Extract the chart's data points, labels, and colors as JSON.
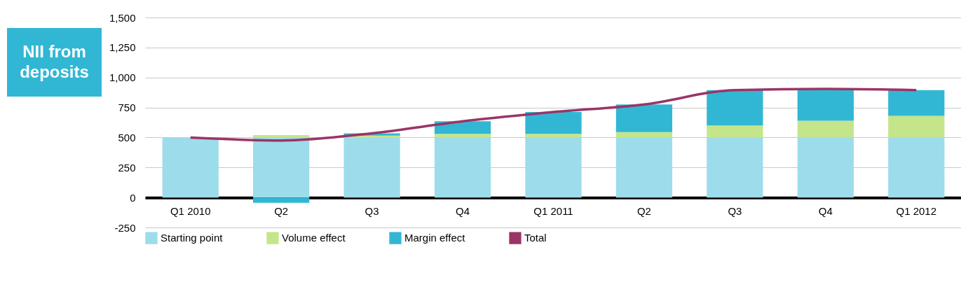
{
  "chart_data": {
    "type": "bar",
    "title": "NII from deposits",
    "stacked": true,
    "categories": [
      "Q1 2010",
      "Q2",
      "Q3",
      "Q4",
      "Q1 2011",
      "Q2",
      "Q3",
      "Q4",
      "Q1 2012"
    ],
    "series": [
      {
        "name": "Starting point",
        "color": "#9ddcea",
        "values": [
          500,
          500,
          500,
          500,
          500,
          500,
          500,
          500,
          500
        ]
      },
      {
        "name": "Volume effect",
        "color": "#c5e58a",
        "values": [
          0,
          20,
          15,
          30,
          30,
          45,
          100,
          140,
          180
        ]
      },
      {
        "name": "Margin effect",
        "color": "#31b7d4",
        "values": [
          0,
          -45,
          20,
          105,
          182,
          230,
          295,
          265,
          215
        ]
      },
      {
        "name": "Total",
        "type": "line",
        "color": "#9b3467",
        "values": [
          500,
          475,
          535,
          635,
          712,
          775,
          895,
          905,
          895
        ]
      }
    ],
    "ylim": [
      -250,
      1500
    ],
    "yticks": [
      -250,
      0,
      250,
      500,
      750,
      {
        "value": 1000,
        "label": "1,000"
      },
      {
        "value": 1250,
        "label": "1,250"
      },
      {
        "value": 1500,
        "label": "1,500"
      }
    ],
    "grid": "y",
    "legend": "bottom"
  }
}
